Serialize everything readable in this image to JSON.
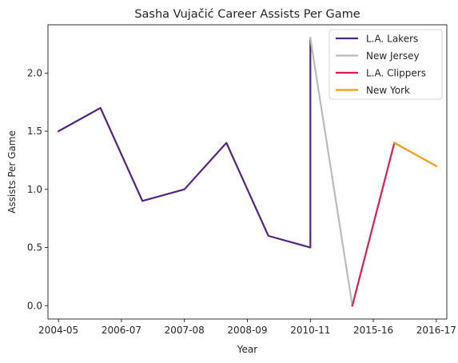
{
  "chart_data": {
    "type": "line",
    "title": "Sasha Vujačić Career Assists Per Game",
    "xlabel": "Year",
    "ylabel": "Assists Per Game",
    "x_tick_labels": [
      "2004-05",
      "2006-07",
      "2007-08",
      "2008-09",
      "2010-11",
      "2015-16",
      "2016-17"
    ],
    "y_ticks": [
      0.0,
      0.5,
      1.0,
      1.5,
      2.0
    ],
    "y_tick_labels": [
      "0.0",
      "0.5",
      "1.0",
      "1.5",
      "2.0"
    ],
    "xlim": [
      -0.25,
      9.25
    ],
    "ylim": [
      -0.115,
      2.415
    ],
    "grid": false,
    "legend_position": "top-right",
    "series": [
      {
        "name": "L.A. Lakers",
        "color": "#552583",
        "x": [
          0,
          1,
          2,
          3,
          4,
          5,
          6,
          6
        ],
        "y": [
          1.5,
          1.7,
          0.9,
          1.0,
          1.4,
          0.6,
          0.5,
          2.3
        ]
      },
      {
        "name": "New Jersey",
        "color": "#bbbbbb",
        "x": [
          6,
          7
        ],
        "y": [
          2.3,
          0.0
        ]
      },
      {
        "name": "L.A. Clippers",
        "color": "#dc1f4f",
        "x": [
          7,
          8
        ],
        "y": [
          0.0,
          1.4
        ]
      },
      {
        "name": "New York",
        "color": "#f39c12",
        "x": [
          8,
          9
        ],
        "y": [
          1.4,
          1.2
        ]
      }
    ],
    "x_tick_positions": [
      0,
      1.5,
      3,
      4.5,
      6,
      7.5,
      9
    ]
  }
}
